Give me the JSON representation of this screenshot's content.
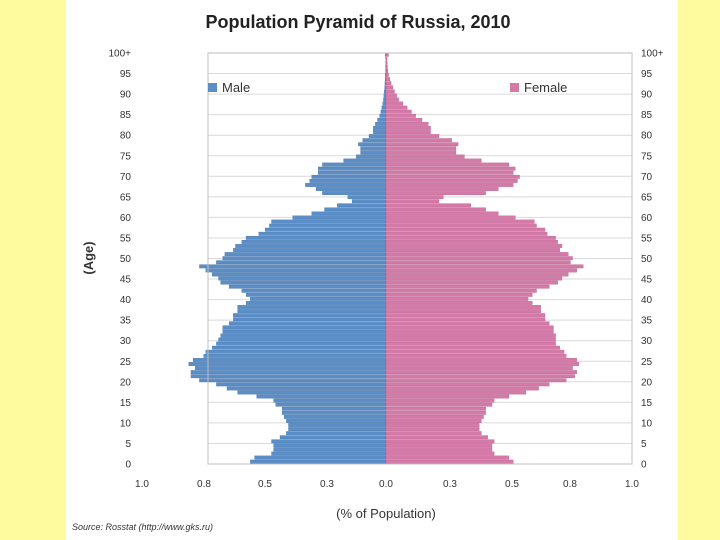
{
  "source_note": "Source: Rosstat (http://www.gks.ru)",
  "colors": {
    "male": "#5b8dc6",
    "female": "#d47aa8",
    "bar_edge": "#3a6aa0",
    "female_edge": "#b45585",
    "grid": "#d9d9d9"
  },
  "chart_data": {
    "type": "bar",
    "orientation": "horizontal-diverging",
    "title": "Population Pyramid of Russia, 2010",
    "xlabel": "(% of Population)",
    "ylabel": "(Age)",
    "xlim": [
      -1.0,
      1.0
    ],
    "x_tick_labels": [
      "1.0",
      "0.8",
      "0.5",
      "0.3",
      "0.0",
      "0.3",
      "0.5",
      "0.8",
      "1.0"
    ],
    "y_tick_labels": [
      "100+",
      "95",
      "90",
      "85",
      "80",
      "75",
      "70",
      "65",
      "60",
      "55",
      "50",
      "45",
      "40",
      "35",
      "30",
      "25",
      "20",
      "15",
      "10",
      "5",
      "0"
    ],
    "legend_position": "top",
    "grid": true,
    "series": [
      {
        "name": "Male",
        "values": [
          0.64,
          0.62,
          0.54,
          0.53,
          0.53,
          0.54,
          0.5,
          0.47,
          0.46,
          0.46,
          0.47,
          0.48,
          0.49,
          0.49,
          0.52,
          0.53,
          0.61,
          0.7,
          0.75,
          0.8,
          0.88,
          0.92,
          0.92,
          0.9,
          0.93,
          0.91,
          0.86,
          0.85,
          0.82,
          0.8,
          0.79,
          0.78,
          0.77,
          0.77,
          0.74,
          0.72,
          0.72,
          0.7,
          0.7,
          0.66,
          0.64,
          0.66,
          0.68,
          0.74,
          0.78,
          0.79,
          0.82,
          0.85,
          0.88,
          0.8,
          0.77,
          0.76,
          0.72,
          0.71,
          0.68,
          0.66,
          0.6,
          0.57,
          0.55,
          0.54,
          0.44,
          0.35,
          0.29,
          0.23,
          0.16,
          0.18,
          0.3,
          0.33,
          0.38,
          0.36,
          0.35,
          0.32,
          0.32,
          0.3,
          0.2,
          0.14,
          0.12,
          0.12,
          0.13,
          0.11,
          0.08,
          0.06,
          0.06,
          0.05,
          0.04,
          0.03,
          0.024,
          0.02,
          0.015,
          0.012,
          0.01,
          0.008,
          0.006,
          0.005,
          0.004,
          0.003,
          0.002,
          0.002,
          0.001,
          0.001,
          0.004
        ]
      },
      {
        "name": "Female",
        "values": [
          0.6,
          0.58,
          0.51,
          0.5,
          0.5,
          0.51,
          0.48,
          0.45,
          0.44,
          0.44,
          0.45,
          0.46,
          0.47,
          0.47,
          0.5,
          0.51,
          0.58,
          0.66,
          0.72,
          0.77,
          0.85,
          0.89,
          0.9,
          0.88,
          0.91,
          0.9,
          0.85,
          0.84,
          0.82,
          0.8,
          0.8,
          0.8,
          0.79,
          0.79,
          0.77,
          0.75,
          0.75,
          0.73,
          0.73,
          0.69,
          0.67,
          0.69,
          0.71,
          0.77,
          0.81,
          0.83,
          0.86,
          0.9,
          0.93,
          0.87,
          0.88,
          0.86,
          0.82,
          0.83,
          0.81,
          0.8,
          0.76,
          0.75,
          0.71,
          0.7,
          0.61,
          0.53,
          0.47,
          0.4,
          0.25,
          0.27,
          0.47,
          0.53,
          0.6,
          0.62,
          0.63,
          0.6,
          0.61,
          0.58,
          0.45,
          0.37,
          0.33,
          0.33,
          0.34,
          0.31,
          0.25,
          0.21,
          0.21,
          0.2,
          0.17,
          0.14,
          0.12,
          0.1,
          0.08,
          0.06,
          0.05,
          0.04,
          0.032,
          0.024,
          0.018,
          0.012,
          0.009,
          0.007,
          0.006,
          0.005,
          0.012
        ]
      }
    ]
  }
}
